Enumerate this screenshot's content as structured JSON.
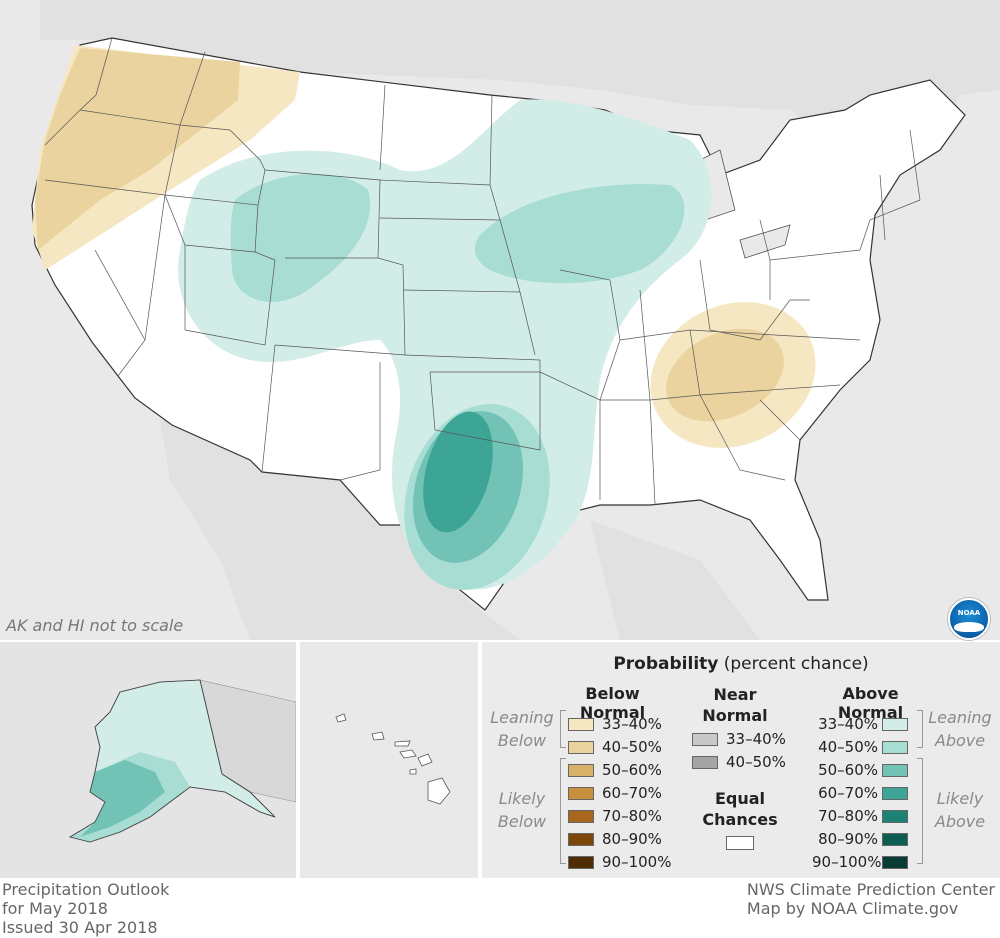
{
  "map": {
    "scale_note": "AK and HI not to scale",
    "logo_text": "NOAA"
  },
  "legend": {
    "title_bold": "Probability",
    "title_rest": " (percent chance)",
    "below": {
      "header": "Below Normal",
      "leaning_label_1": "Leaning",
      "leaning_label_2": "Below",
      "likely_label_1": "Likely",
      "likely_label_2": "Below",
      "rows": [
        {
          "label": "33–40%",
          "color": "#f5e7c2"
        },
        {
          "label": "40–50%",
          "color": "#ead39e"
        },
        {
          "label": "50–60%",
          "color": "#d9b26a"
        },
        {
          "label": "60–70%",
          "color": "#c88f3f"
        },
        {
          "label": "70–80%",
          "color": "#a8661f"
        },
        {
          "label": "80–90%",
          "color": "#7c4709"
        },
        {
          "label": "90–100%",
          "color": "#4f2c03"
        }
      ]
    },
    "near": {
      "header_1": "Near",
      "header_2": "Normal",
      "rows": [
        {
          "label": "33–40%",
          "color": "#c8c8c8"
        },
        {
          "label": "40–50%",
          "color": "#a4a4a4"
        }
      ]
    },
    "equal": {
      "header_1": "Equal",
      "header_2": "Chances",
      "color": "#ffffff"
    },
    "above": {
      "header": "Above Normal",
      "leaning_label_1": "Leaning",
      "leaning_label_2": "Above",
      "likely_label_1": "Likely",
      "likely_label_2": "Above",
      "rows": [
        {
          "label": "33–40%",
          "color": "#d2ede8"
        },
        {
          "label": "40–50%",
          "color": "#a8ddd4"
        },
        {
          "label": "50–60%",
          "color": "#72c3b6"
        },
        {
          "label": "60–70%",
          "color": "#3da596"
        },
        {
          "label": "70–80%",
          "color": "#1b8274"
        },
        {
          "label": "80–90%",
          "color": "#0d5e52"
        },
        {
          "label": "90–100%",
          "color": "#073b33"
        }
      ]
    }
  },
  "footer": {
    "left_1": "Precipitation Outlook",
    "left_2": "for May 2018",
    "left_3": "Issued 30 Apr 2018",
    "right_1": "NWS Climate Prediction Center",
    "right_2": "Map by NOAA Climate.gov"
  },
  "colors": {
    "background_gray": "#e9e9e9",
    "land": "#ffffff"
  }
}
